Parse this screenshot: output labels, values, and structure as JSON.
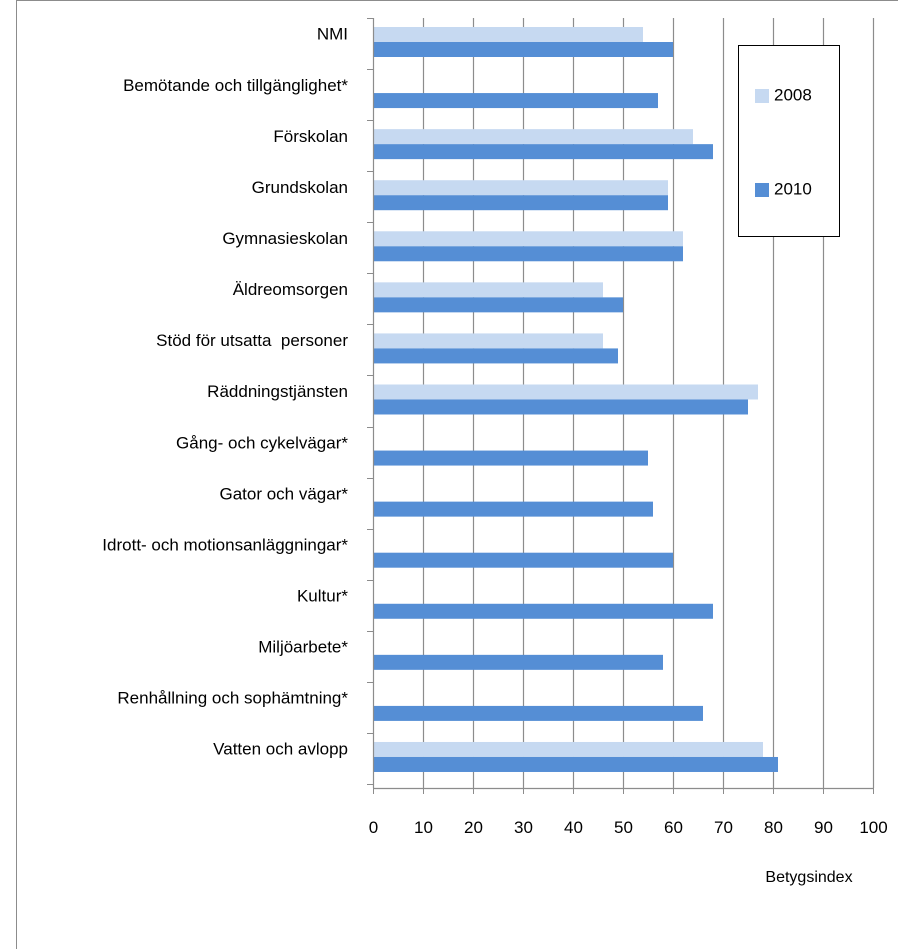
{
  "chart_data": {
    "type": "bar",
    "orientation": "horizontal",
    "categories": [
      "NMI",
      "Bemötande och tillgänglighet*",
      "Förskolan",
      "Grundskolan",
      "Gymnasieskolan",
      "Äldreomsorgen",
      "Stöd för utsatta  personer",
      "Räddningstjänsten",
      "Gång- och cykelvägar*",
      "Gator och vägar*",
      "Idrott- och motionsanläggningar*",
      "Kultur*",
      "Miljöarbete*",
      "Renhållning och sophämtning*",
      "Vatten och avlopp"
    ],
    "series": [
      {
        "name": "2008",
        "color": "#c6d9f1",
        "values": [
          54,
          null,
          64,
          59,
          62,
          46,
          46,
          77,
          null,
          null,
          null,
          null,
          null,
          null,
          78
        ]
      },
      {
        "name": "2010",
        "color": "#558ed5",
        "values": [
          60,
          57,
          68,
          59,
          62,
          50,
          49,
          75,
          55,
          56,
          60,
          68,
          58,
          66,
          81
        ]
      }
    ],
    "xlabel": "Betygsindex",
    "xlim": [
      0,
      100
    ],
    "xticks": [
      "0",
      "10",
      "20",
      "30",
      "40",
      "50",
      "60",
      "70",
      "80",
      "90",
      "100"
    ],
    "grid": true,
    "legend_position": "top-right",
    "legend_border": true
  }
}
